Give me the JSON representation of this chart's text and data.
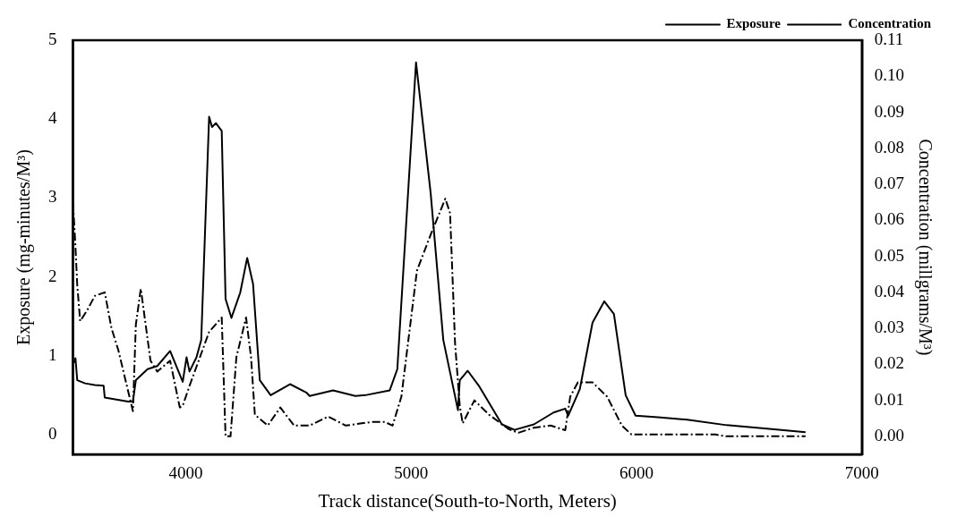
{
  "chart_data": {
    "type": "line",
    "xlabel": "Track distance(South-to-North, Meters)",
    "ylabel": "Exposure (mg-minutes/M³)",
    "y2label": "Concentration (millgrams/M³)",
    "xlim": [
      3500,
      7000
    ],
    "xticks": [
      4000,
      5000,
      6000,
      7000
    ],
    "ylim": [
      -0.25,
      5
    ],
    "yticks": [
      0,
      1,
      2,
      3,
      4,
      5
    ],
    "y2lim": [
      -0.005,
      0.11
    ],
    "y2ticks": [
      {
        "value": 0,
        "label": "0.00"
      },
      0.01,
      0.02,
      0.03,
      0.04,
      0.05,
      0.06,
      0.07,
      0.08,
      0.09,
      {
        "value": 0.1,
        "label": "0.10"
      },
      0.11
    ],
    "legend": "top right",
    "grid": false,
    "marker": "none",
    "series": [
      {
        "name": "Exposure",
        "color": "#000000",
        "line_style": "solid",
        "x": [
          3506,
          3511,
          3519,
          3554,
          3597,
          3636,
          3641,
          3745,
          3766,
          3779,
          3831,
          3874,
          3931,
          3987,
          4004,
          4017,
          4048,
          4069,
          4104,
          4117,
          4134,
          4160,
          4177,
          4203,
          4242,
          4273,
          4299,
          4329,
          4377,
          4463,
          4537,
          4550,
          4654,
          4753,
          4797,
          4905,
          4939,
          5022,
          5087,
          5143,
          5208,
          5216,
          5251,
          5303,
          5403,
          5459,
          5545,
          5632,
          5684,
          5697,
          5749,
          5805,
          5857,
          5900,
          5952,
          5996,
          6095,
          6225,
          6400,
          6600,
          6750
        ],
        "values": [
          0.91,
          0.97,
          0.69,
          0.65,
          0.63,
          0.62,
          0.47,
          0.42,
          0.42,
          0.69,
          0.83,
          0.87,
          1.06,
          0.67,
          0.98,
          0.8,
          0.98,
          1.2,
          4.03,
          3.9,
          3.95,
          3.85,
          1.72,
          1.48,
          1.8,
          2.24,
          1.91,
          0.69,
          0.5,
          0.64,
          0.53,
          0.49,
          0.56,
          0.49,
          0.5,
          0.56,
          0.83,
          4.72,
          3.06,
          1.2,
          0.31,
          0.69,
          0.81,
          0.61,
          0.13,
          0.06,
          0.13,
          0.28,
          0.33,
          0.24,
          0.58,
          1.42,
          1.69,
          1.53,
          0.5,
          0.24,
          0.22,
          0.19,
          0.12,
          0.07,
          0.03
        ]
      },
      {
        "name": "Concentration",
        "color": "#000000",
        "line_style": "dashdot",
        "axis": "y2",
        "x": [
          3500,
          3510,
          3519,
          3532,
          3563,
          3597,
          3641,
          3671,
          3701,
          3766,
          3779,
          3801,
          3844,
          3874,
          3931,
          3974,
          3987,
          4017,
          4104,
          4160,
          4177,
          4199,
          4225,
          4268,
          4290,
          4307,
          4364,
          4420,
          4481,
          4550,
          4632,
          4710,
          4827,
          4883,
          4918,
          4957,
          5026,
          5087,
          5152,
          5173,
          5195,
          5216,
          5229,
          5281,
          5346,
          5433,
          5476,
          5545,
          5619,
          5684,
          5706,
          5740,
          5805,
          5870,
          5935,
          5978,
          6095,
          6350,
          6400,
          6750
        ],
        "values": [
          0.065,
          0.054,
          0.042,
          0.032,
          0.035,
          0.039,
          0.04,
          0.03,
          0.024,
          0.007,
          0.031,
          0.041,
          0.021,
          0.018,
          0.021,
          0.008,
          0.0085,
          0.014,
          0.029,
          0.033,
          0.0,
          0.0,
          0.022,
          0.033,
          0.022,
          0.006,
          0.003,
          0.008,
          0.003,
          0.003,
          0.0055,
          0.003,
          0.004,
          0.004,
          0.003,
          0.011,
          0.046,
          0.056,
          0.066,
          0.062,
          0.026,
          0.0085,
          0.0036,
          0.01,
          0.006,
          0.002,
          0.001,
          0.0024,
          0.003,
          0.0017,
          0.011,
          0.015,
          0.015,
          0.011,
          0.003,
          0.0005,
          0.0005,
          0.0005,
          0.0,
          0.0
        ]
      }
    ]
  }
}
